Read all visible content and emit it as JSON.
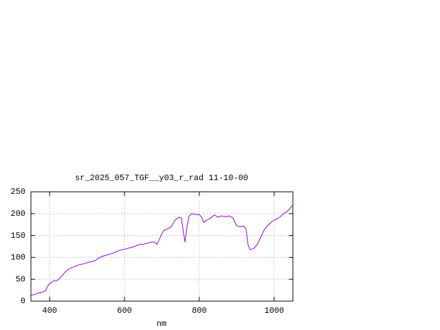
{
  "chart_data": {
    "type": "line",
    "title": "sr_2025_057_TGF__y03_r_rad 11-10-00",
    "xlabel": "nm",
    "x": [
      350,
      360,
      370,
      380,
      390,
      395,
      400,
      410,
      420,
      430,
      440,
      450,
      460,
      470,
      480,
      490,
      500,
      510,
      520,
      530,
      540,
      550,
      560,
      570,
      580,
      590,
      600,
      610,
      620,
      630,
      640,
      650,
      660,
      670,
      680,
      687,
      695,
      705,
      715,
      725,
      735,
      745,
      752,
      757,
      762,
      767,
      773,
      780,
      790,
      800,
      805,
      812,
      820,
      830,
      840,
      850,
      860,
      870,
      880,
      890,
      900,
      910,
      918,
      925,
      930,
      935,
      945,
      955,
      965,
      975,
      985,
      995,
      1005,
      1015,
      1025,
      1035,
      1045,
      1050
    ],
    "values": [
      13,
      15,
      19,
      20,
      25,
      35,
      40,
      46,
      47,
      55,
      65,
      73,
      77,
      80,
      84,
      85,
      88,
      90,
      92,
      98,
      102,
      105,
      107,
      110,
      114,
      117,
      119,
      121,
      123,
      126,
      130,
      130,
      132,
      135,
      135,
      130,
      145,
      162,
      165,
      170,
      185,
      192,
      190,
      160,
      135,
      170,
      195,
      200,
      198,
      198,
      193,
      180,
      185,
      190,
      197,
      192,
      195,
      193,
      195,
      190,
      172,
      170,
      172,
      165,
      130,
      118,
      120,
      130,
      148,
      165,
      175,
      183,
      187,
      192,
      200,
      205,
      215,
      220
    ],
    "color": "#9400d3",
    "xlim": [
      350,
      1050
    ],
    "xticks": [
      400,
      600,
      800,
      1000
    ],
    "ylim": [
      0,
      250
    ],
    "yticks": [
      0,
      50,
      100,
      150,
      200,
      250
    ],
    "grid": true
  }
}
